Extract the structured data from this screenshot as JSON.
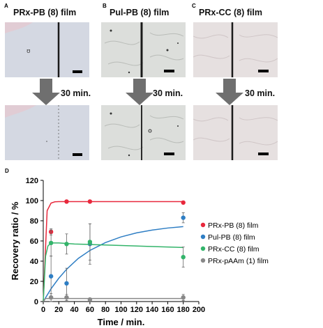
{
  "panels": {
    "A": {
      "label": "A",
      "title": "PRx-PB (8) film",
      "arrow_text": "30 min."
    },
    "B": {
      "label": "B",
      "title": "Pul-PB (8) film",
      "arrow_text": "30 min."
    },
    "C": {
      "label": "C",
      "title": "PRx-CC (8) film",
      "arrow_text": "30 min."
    },
    "D": {
      "label": "D"
    }
  },
  "colors": {
    "tint_A": "#d4d8e2",
    "tint_B": "#dcdedb",
    "tint_C": "#e6e0e0",
    "arrow": "#6f6f6f"
  },
  "chart_data": {
    "type": "scatter",
    "xlabel": "Time / min.",
    "ylabel": "Recovery ratio / %",
    "xlim": [
      0,
      200
    ],
    "ylim": [
      0,
      120
    ],
    "xticks": [
      "0",
      "20",
      "40",
      "60",
      "80",
      "100",
      "120",
      "140",
      "160",
      "180",
      "200"
    ],
    "yticks": [
      "0",
      "20",
      "40",
      "60",
      "80",
      "100",
      "120"
    ],
    "legend_position": "right",
    "series": [
      {
        "name": "PRx-PB (8) film",
        "color": "#e8283c",
        "x": [
          10,
          30,
          60,
          180
        ],
        "y": [
          69,
          99,
          99,
          98
        ],
        "err": [
          3,
          1,
          1,
          1
        ],
        "fit": {
          "x": [
            0,
            5,
            10,
            15,
            20,
            30,
            40,
            60,
            90,
            120,
            150,
            180
          ],
          "y": [
            0,
            90,
            97.5,
            98.8,
            99,
            99,
            99,
            99,
            99,
            99,
            99,
            99
          ]
        }
      },
      {
        "name": "Pul-PB (8) film",
        "color": "#2e7ec4",
        "x": [
          10,
          30,
          60,
          180
        ],
        "y": [
          25,
          18,
          57,
          83
        ],
        "err": [
          20,
          15,
          20,
          5
        ],
        "fit": {
          "x": [
            0,
            10,
            20,
            30,
            45,
            60,
            80,
            100,
            120,
            140,
            160,
            180
          ],
          "y": [
            0,
            12.6,
            23.1,
            31.9,
            42.7,
            50.6,
            58.4,
            64.0,
            68.0,
            70.8,
            72.8,
            74.2
          ]
        }
      },
      {
        "name": "PRx-CC (8) film",
        "color": "#33b46a",
        "x": [
          10,
          30,
          60,
          180
        ],
        "y": [
          58,
          57,
          59,
          44
        ],
        "err": [
          13,
          10,
          18,
          10
        ],
        "fit": {
          "x": [
            0,
            3,
            6,
            10,
            20,
            40,
            60,
            100,
            140,
            180
          ],
          "y": [
            0,
            45,
            55,
            58,
            58,
            57,
            56.5,
            55.5,
            54.5,
            53.5
          ]
        }
      },
      {
        "name": "PRx-pAAm (1) film",
        "color": "#888888",
        "x": [
          10,
          30,
          60,
          180
        ],
        "y": [
          4,
          4,
          2,
          4
        ],
        "err": [
          4,
          3,
          1,
          3
        ],
        "fit": {
          "x": [
            0,
            3,
            10,
            30,
            60,
            120,
            180
          ],
          "y": [
            0,
            3,
            3,
            3,
            3,
            3,
            3
          ]
        }
      }
    ]
  }
}
